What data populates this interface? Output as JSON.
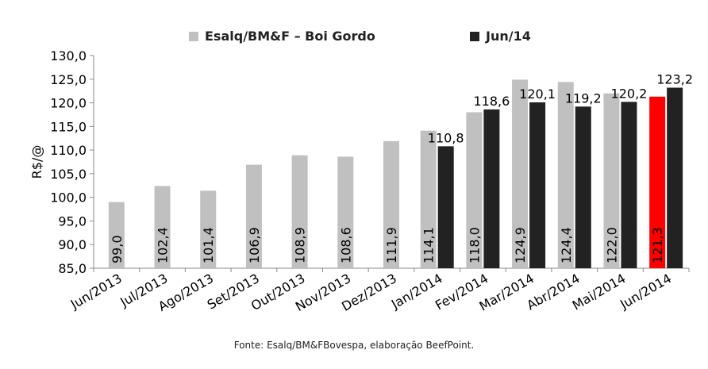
{
  "chart_data": {
    "type": "bar",
    "categories": [
      "Jun/2013",
      "Jul/2013",
      "Ago/2013",
      "Set/2013",
      "Out/2013",
      "Nov/2013",
      "Dez/2013",
      "Jan/2014",
      "Fev/2014",
      "Mar/2014",
      "Abr/2014",
      "Mai/2014",
      "Jun/2014"
    ],
    "series": [
      {
        "name": "Esalq/BM&F – Boi Gordo",
        "color": "#c0c0c0",
        "values": [
          99.0,
          102.4,
          101.4,
          106.9,
          108.9,
          108.6,
          111.9,
          114.1,
          118.0,
          124.9,
          124.4,
          122.0,
          121.3
        ],
        "labels": [
          "99,0",
          "102,4",
          "101,4",
          "106,9",
          "108,9",
          "108,6",
          "111,9",
          "114,1",
          "118,0",
          "124,9",
          "124,4",
          "122,0",
          "121,3"
        ],
        "highlight_index": 12,
        "highlight_color": "#ff0000"
      },
      {
        "name": "Jun/14",
        "color": "#222222",
        "values": [
          null,
          null,
          null,
          null,
          null,
          null,
          null,
          110.8,
          118.6,
          120.1,
          119.2,
          120.2,
          123.2
        ],
        "labels": [
          "",
          "",
          "",
          "",
          "",
          "",
          "",
          "110,8",
          "118,6",
          "120,1",
          "119,2",
          "120,2",
          "123,2"
        ]
      }
    ],
    "ylabel": "R$/@",
    "ylim": [
      85,
      130
    ],
    "yticks": [
      "85,0",
      "90,0",
      "95,0",
      "100,0",
      "105,0",
      "110,0",
      "115,0",
      "120,0",
      "125,0",
      "130,0"
    ],
    "grid": false,
    "legend_position": "top"
  },
  "source": "Fonte: Esalq/BM&FBovespa, elaboração BeefPoint."
}
